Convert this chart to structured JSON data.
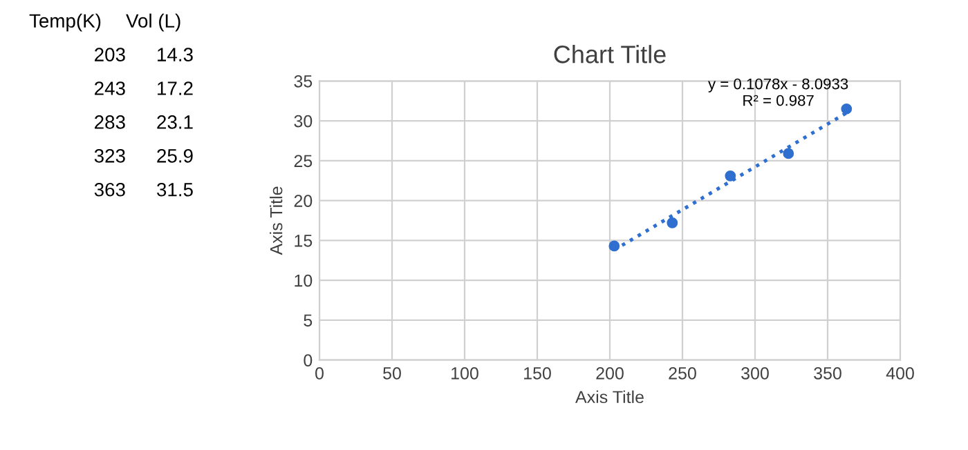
{
  "chart_data": {
    "type": "scatter",
    "title": "Chart Title",
    "xlabel": "Axis Title",
    "ylabel": "Axis Title",
    "x": [
      203,
      243,
      283,
      323,
      363
    ],
    "series": [
      {
        "color": "#2e6fd0",
        "marker": "circle",
        "values": [
          14.3,
          17.2,
          23.1,
          25.9,
          31.5
        ]
      },
      {
        "type": "line",
        "color": "#2e6fd0",
        "line_style": "dotted",
        "x": [
          203,
          363
        ],
        "values": [
          13.8,
          31.0
        ]
      }
    ],
    "annotations": [
      "Temp(K)",
      "Vol (L)",
      "203",
      "14.3",
      "243",
      "17.2",
      "283",
      "23.1",
      "323",
      "25.9",
      "363",
      "31.5",
      "y = 0.1078x - 8.0933\nR² = 0.987"
    ],
    "xlim": [
      0,
      400
    ],
    "xticks": [
      0,
      50,
      100,
      150,
      200,
      250,
      300,
      350,
      400
    ],
    "ylim": [
      0,
      35
    ],
    "yticks": [
      0,
      5,
      10,
      15,
      20,
      25,
      30,
      35
    ],
    "grid": true
  }
}
